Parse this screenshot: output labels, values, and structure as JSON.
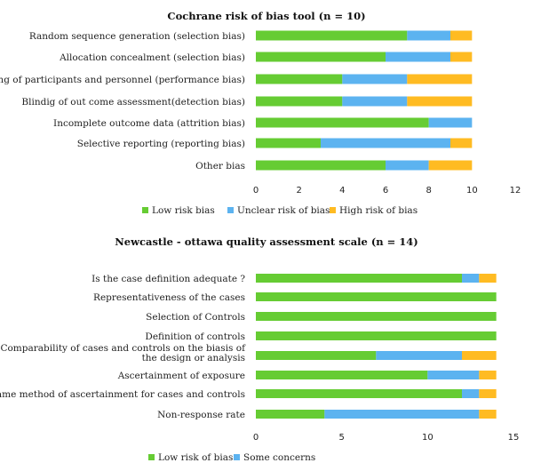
{
  "chart_data": [
    {
      "type": "bar",
      "stacked": true,
      "orientation": "horizontal",
      "title": "Cochrane risk of bias tool (n = 10)",
      "categories": [
        "Random sequence generation (selection bias)",
        "Allocation concealment (selection bias)",
        "Blinding of participants and personnel (performance bias)",
        "Blindig of out come assessment(detection bias)",
        "Incomplete outcome data (attrition bias)",
        "Selective reporting (reporting bias)",
        "Other bias"
      ],
      "series": [
        {
          "name": "Low risk bias",
          "color": "#66cc33",
          "values": [
            7,
            6,
            4,
            4,
            8,
            3,
            6
          ]
        },
        {
          "name": "Unclear risk of bias",
          "color": "#5cb3f0",
          "values": [
            2,
            3,
            3,
            3,
            2,
            6,
            2
          ]
        },
        {
          "name": "High risk of bias",
          "color": "#ffbb22",
          "values": [
            1,
            1,
            3,
            3,
            0,
            1,
            2
          ]
        }
      ],
      "xlim": [
        0,
        12
      ],
      "xticks": [
        0,
        2,
        4,
        6,
        8,
        10,
        12
      ],
      "grid": false,
      "legend": "bottom"
    },
    {
      "type": "bar",
      "stacked": true,
      "orientation": "horizontal",
      "title": "Newcastle - ottawa quality assessment scale (n = 14)",
      "categories": [
        "Is the case definition adequate ?",
        "Representativeness of the cases",
        "Selection of Controls",
        "Definition of controls",
        "Comparability of cases and controls on the biasis of the design or analysis",
        "Ascertainment of exposure",
        "Same method of ascertainment for cases and controls",
        "Non-response rate"
      ],
      "series": [
        {
          "name": "Low risk of bias",
          "color": "#66cc33",
          "values": [
            12,
            14,
            14,
            14,
            7,
            10,
            12,
            4
          ]
        },
        {
          "name": "Some concerns",
          "color": "#5cb3f0",
          "values": [
            1,
            0,
            0,
            0,
            5,
            3,
            1,
            9
          ]
        },
        {
          "name": "",
          "color": "#ffbb22",
          "values": [
            1,
            0,
            0,
            0,
            2,
            1,
            1,
            1
          ]
        }
      ],
      "xlim": [
        0,
        15
      ],
      "xticks": [
        0,
        5,
        10,
        15
      ],
      "grid": false,
      "legend": "bottom"
    }
  ]
}
